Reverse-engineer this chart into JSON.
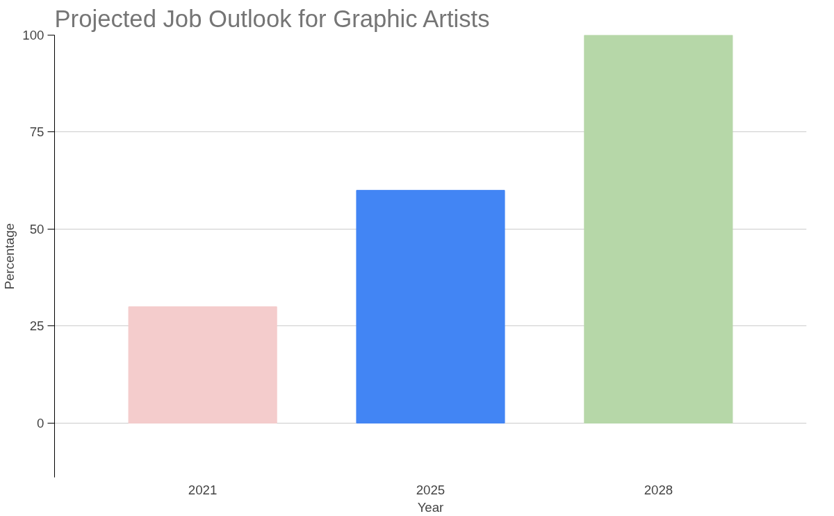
{
  "chart_data": {
    "type": "bar",
    "title": "Projected Job Outlook for Graphic Artists",
    "xlabel": "Year",
    "ylabel": "Percentage",
    "categories": [
      "2021",
      "2025",
      "2028"
    ],
    "values": [
      30,
      60,
      100
    ],
    "colors": [
      "#f4cccc",
      "#4285f4",
      "#b6d7a8"
    ],
    "ylim": [
      -14,
      100
    ],
    "yticks": [
      0,
      25,
      50,
      75,
      100
    ],
    "grid": "y"
  }
}
